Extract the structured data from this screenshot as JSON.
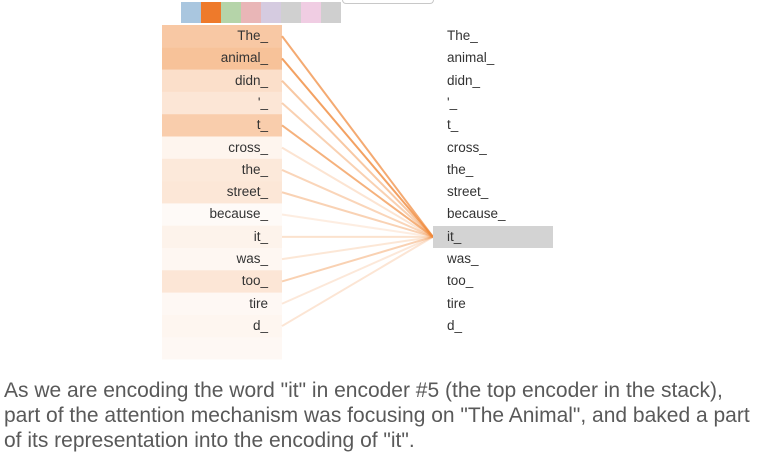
{
  "head_colors": [
    "#a9c6df",
    "#ee7a2b",
    "#b5d4a9",
    "#e9b6b7",
    "#d5cbe0",
    "#d0d0d0",
    "#f0cde3",
    "#cfcfcf"
  ],
  "active_head": 1,
  "attention_color": "#f08a3c",
  "source_tokens": [
    "The_",
    "animal_",
    "didn_",
    "'_",
    "t_",
    "cross_",
    "the_",
    "street_",
    "because_",
    "it_",
    "was_",
    "too_",
    "tire",
    "d_",
    ""
  ],
  "target_tokens": [
    "The_",
    "animal_",
    "didn_",
    "'_",
    "t_",
    "cross_",
    "the_",
    "street_",
    "because_",
    "it_",
    "was_",
    "too_",
    "tire",
    "d_"
  ],
  "selected_target_index": 9,
  "attention_weights": [
    0.55,
    0.62,
    0.32,
    0.25,
    0.5,
    0.1,
    0.22,
    0.24,
    0.03,
    0.12,
    0.08,
    0.25,
    0.07,
    0.09,
    0.07
  ],
  "caption": "As we are encoding the word \"it\" in encoder #5 (the top encoder in the stack), part of the attention mechanism was focusing on \"The Animal\", and baked a part of its representation into the encoding of \"it\"."
}
